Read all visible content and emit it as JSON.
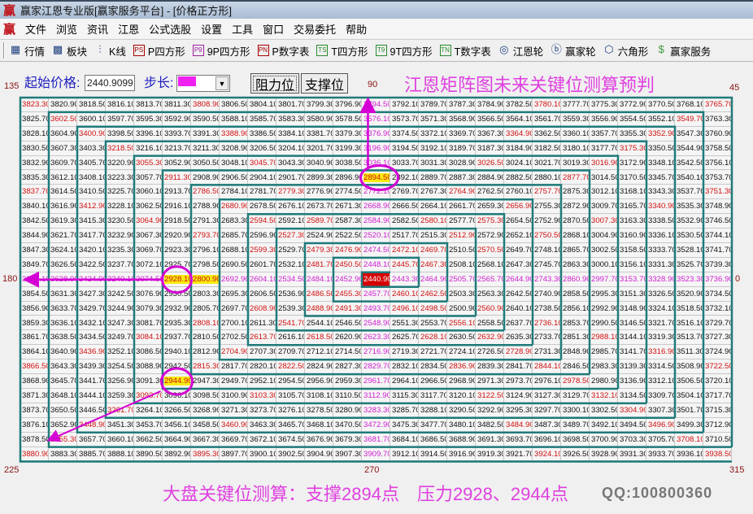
{
  "window": {
    "title": "赢家江恩专业版[赢家服务平台] - [价格正方形]",
    "logo": "赢"
  },
  "menu": [
    "文件",
    "浏览",
    "资讯",
    "江恩",
    "公式选股",
    "设置",
    "工具",
    "窗口",
    "交易委托",
    "帮助"
  ],
  "toolbar": [
    {
      "icon": "table-icon",
      "glyph": "▦",
      "label": "行情"
    },
    {
      "icon": "blocks-icon",
      "glyph": "▩",
      "label": "板块"
    },
    {
      "icon": "candlestick-icon",
      "glyph": "⫶",
      "label": "K线"
    },
    {
      "icon": "ps-icon",
      "glyph": "PS",
      "label": "P四方形"
    },
    {
      "icon": "p9-icon",
      "glyph": "P9",
      "label": "9P四方形"
    },
    {
      "icon": "pn-icon",
      "glyph": "PN",
      "label": "P数字表"
    },
    {
      "icon": "ts-icon",
      "glyph": "TS",
      "label": "T四方形"
    },
    {
      "icon": "t9-icon",
      "glyph": "T9",
      "label": "9T四方形"
    },
    {
      "icon": "tn-icon",
      "glyph": "TN",
      "label": "T数字表"
    },
    {
      "icon": "gann-wheel-icon",
      "glyph": "◎",
      "label": "江恩轮"
    },
    {
      "icon": "winner-wheel-icon",
      "glyph": "ⓑ",
      "label": "赢家轮"
    },
    {
      "icon": "hexagon-icon",
      "glyph": "⬡",
      "label": "六角形"
    },
    {
      "icon": "dollar-icon",
      "glyph": "$",
      "label": "赢家服务"
    }
  ],
  "controls": {
    "start_price_label": "起始价格:",
    "start_price_value": "2440.9099",
    "step_label": "步长:",
    "step_color": "#f020f0",
    "resistance_button": "阻力位",
    "support_button": "支撑位"
  },
  "headline": "江恩矩阵图未来关键位测算预判",
  "footline": "大盘关键位测算：支撑2894点　压力2928、2944点",
  "watermark": "QQ:100800360",
  "angles": {
    "a135": "135",
    "a90": "90",
    "a45": "45",
    "a180": "180",
    "a0": "0",
    "a225": "225",
    "a270": "270",
    "a315": "315"
  },
  "colors": {
    "red_text": "#d01010",
    "axis_text": "#d020d0",
    "center_bg": "#d40000",
    "highlight_bg": "#f8ec10",
    "spiral_line": "#1f7a7a",
    "annotation": "#d400d4"
  },
  "grid": {
    "color_codes_legend": {
      ".": "normal",
      "r": "red",
      "m": "magenta axis",
      "c": "center",
      "y": "highlighted key level"
    },
    "colors": [
      "r.....r.....m.....r.....r",
      ".r..........m..........r.",
      "..r....r....m....r....r..",
      "...r........m........r...",
      "....r...r...m...r...r....",
      ".....r......y......r.....",
      "r.....r..r..m..r..r.....r",
      "..r....r....m....r....r..",
      "....r...r.r.m.r.r...r....",
      "......r..r..m..r..r......",
      "........r.rrmrr.r........",
      "..........rrmrr..........",
      "mmmmmyymmmmmcmmmmmmmmmmmm",
      "..........rrmrr..........",
      "........r.rrmrr.r........",
      "......r..r..m..r..r......",
      "....r...r.r.m.r.r...r....",
      "..r....r....m....r....r..",
      "r.....r..r..m..r..r.....r",
      ".....y......m......r.....",
      "....r...r...m...r...r....",
      "...r........m........r...",
      "..r....r....m....r....r..",
      ".r..........m..........r.",
      "r.....r.....m.....r.....r"
    ],
    "rows": [
      [
        "3823.30",
        "3820.90",
        "3818.50",
        "3816.10",
        "3813.70",
        "3811.30",
        "3808.90",
        "3806.50",
        "3804.10",
        "3801.70",
        "3799.30",
        "3796.90",
        "3794.50",
        "3792.10",
        "3789.70",
        "3787.30",
        "3784.90",
        "3782.50",
        "3780.10",
        "3777.70",
        "3775.30",
        "3772.90",
        "3770.50",
        "3768.10",
        "3765.70"
      ],
      [
        "3825.70",
        "3602.50",
        "3600.10",
        "3597.70",
        "3595.30",
        "3592.90",
        "3590.50",
        "3588.10",
        "3585.70",
        "3583.30",
        "3580.90",
        "3578.50",
        "3576.10",
        "3573.70",
        "3571.30",
        "3568.90",
        "3566.50",
        "3564.10",
        "3561.70",
        "3559.30",
        "3556.90",
        "3554.50",
        "3552.10",
        "3549.70",
        "3763.30"
      ],
      [
        "3828.10",
        "3604.90",
        "3400.90",
        "3398.50",
        "3396.10",
        "3393.70",
        "3391.30",
        "3388.90",
        "3386.50",
        "3384.10",
        "3381.70",
        "3379.30",
        "3376.90",
        "3374.50",
        "3372.10",
        "3369.70",
        "3367.30",
        "3364.90",
        "3362.50",
        "3360.10",
        "3357.70",
        "3355.30",
        "3352.90",
        "3547.30",
        "3760.90"
      ],
      [
        "3830.50",
        "3607.30",
        "3403.30",
        "3218.50",
        "3216.10",
        "3213.70",
        "3211.30",
        "3208.90",
        "3206.50",
        "3204.10",
        "3201.70",
        "3199.30",
        "3196.90",
        "3194.50",
        "3192.10",
        "3189.70",
        "3187.30",
        "3184.90",
        "3182.50",
        "3180.10",
        "3177.70",
        "3175.30",
        "3350.50",
        "3544.90",
        "3758.50"
      ],
      [
        "3832.90",
        "3609.70",
        "3405.70",
        "3220.90",
        "3055.30",
        "3052.90",
        "3050.50",
        "3048.10",
        "3045.70",
        "3043.30",
        "3040.90",
        "3038.50",
        "3036.10",
        "3033.70",
        "3031.30",
        "3028.90",
        "3026.50",
        "3024.10",
        "3021.70",
        "3019.30",
        "3016.90",
        "3172.90",
        "3348.10",
        "3542.50",
        "3756.10"
      ],
      [
        "3835.30",
        "3612.10",
        "3408.10",
        "3223.30",
        "3057.70",
        "2911.30",
        "2908.90",
        "2906.50",
        "2904.10",
        "2901.70",
        "2899.30",
        "2896.90",
        "2894.50",
        "2892.10",
        "2889.70",
        "2887.30",
        "2884.90",
        "2882.50",
        "2880.10",
        "2877.70",
        "3014.50",
        "3170.50",
        "3345.70",
        "3540.10",
        "3753.70"
      ],
      [
        "3837.70",
        "3614.50",
        "3410.50",
        "3225.70",
        "3060.10",
        "2913.70",
        "2786.50",
        "2784.10",
        "2781.70",
        "2779.30",
        "2776.90",
        "2774.50",
        "2772.10",
        "2769.70",
        "2767.30",
        "2764.90",
        "2762.50",
        "2760.10",
        "2757.70",
        "2875.30",
        "3012.10",
        "3168.10",
        "3343.30",
        "3537.70",
        "3751.30"
      ],
      [
        "3840.10",
        "3616.90",
        "3412.90",
        "3228.10",
        "3062.50",
        "2916.10",
        "2788.90",
        "2680.90",
        "2678.50",
        "2676.10",
        "2673.70",
        "2671.30",
        "2668.90",
        "2666.50",
        "2664.10",
        "2661.70",
        "2659.30",
        "2656.90",
        "2755.30",
        "2872.90",
        "3009.70",
        "3165.70",
        "3340.90",
        "3535.30",
        "3748.90"
      ],
      [
        "3842.50",
        "3619.30",
        "3415.30",
        "3230.50",
        "3064.90",
        "2918.50",
        "2791.30",
        "2683.30",
        "2594.50",
        "2592.10",
        "2589.70",
        "2587.30",
        "2584.90",
        "2582.50",
        "2580.10",
        "2577.70",
        "2575.30",
        "2654.50",
        "2752.90",
        "2870.50",
        "3007.30",
        "3163.30",
        "3338.50",
        "3532.90",
        "3746.50"
      ],
      [
        "3844.90",
        "3621.70",
        "3417.70",
        "3232.90",
        "3067.30",
        "2920.90",
        "2793.70",
        "2685.70",
        "2596.90",
        "2527.30",
        "2524.90",
        "2522.50",
        "2520.10",
        "2517.70",
        "2515.30",
        "2512.90",
        "2572.90",
        "2652.10",
        "2750.50",
        "2868.10",
        "3004.90",
        "3160.90",
        "3336.10",
        "3530.50",
        "3744.10"
      ],
      [
        "3847.30",
        "3624.10",
        "3420.10",
        "3235.30",
        "3069.70",
        "2923.30",
        "2796.10",
        "2688.10",
        "2599.30",
        "2529.70",
        "2479.30",
        "2476.90",
        "2474.50",
        "2472.10",
        "2469.70",
        "2510.50",
        "2570.50",
        "2649.70",
        "2748.10",
        "2865.70",
        "3002.50",
        "3158.50",
        "3333.70",
        "3528.10",
        "3741.70"
      ],
      [
        "3849.70",
        "3626.50",
        "3422.50",
        "3237.70",
        "3072.10",
        "2925.70",
        "2798.50",
        "2690.50",
        "2601.70",
        "2532.10",
        "2481.70",
        "2450.50",
        "2448.10",
        "2445.70",
        "2467.30",
        "2508.10",
        "2568.10",
        "2647.30",
        "2745.70",
        "2863.30",
        "3000.10",
        "3156.10",
        "3331.30",
        "3525.70",
        "3739.30"
      ],
      [
        "3852.10",
        "3628.90",
        "3424.90",
        "3240.10",
        "3074.50",
        "2928.10",
        "2800.90",
        "2692.90",
        "2604.10",
        "2534.50",
        "2484.10",
        "2452.90",
        "2440.90",
        "2443.30",
        "2464.90",
        "2505.70",
        "2565.70",
        "2644.90",
        "2743.30",
        "2860.90",
        "2997.70",
        "3153.70",
        "3328.90",
        "3523.30",
        "3736.90"
      ],
      [
        "3854.50",
        "3631.30",
        "3427.30",
        "3242.50",
        "3076.90",
        "2930.50",
        "2803.30",
        "2695.30",
        "2606.50",
        "2536.90",
        "2486.50",
        "2455.30",
        "2457.70",
        "2460.10",
        "2462.50",
        "2503.30",
        "2563.30",
        "2642.50",
        "2740.90",
        "2858.50",
        "2995.30",
        "3151.30",
        "3326.50",
        "3520.90",
        "3734.50"
      ],
      [
        "3856.90",
        "3633.70",
        "3429.70",
        "3244.90",
        "3079.30",
        "2932.90",
        "2805.70",
        "2697.70",
        "2608.90",
        "2539.30",
        "2488.90",
        "2491.30",
        "2493.70",
        "2496.10",
        "2498.50",
        "2500.90",
        "2560.90",
        "2640.10",
        "2738.50",
        "2856.10",
        "2992.90",
        "3148.90",
        "3324.10",
        "3518.50",
        "3732.10"
      ],
      [
        "3859.30",
        "3636.10",
        "3432.10",
        "3247.30",
        "3081.70",
        "2935.30",
        "2808.10",
        "2700.10",
        "2611.30",
        "2541.70",
        "2544.10",
        "2546.50",
        "2548.90",
        "2551.30",
        "2553.70",
        "2556.10",
        "2558.50",
        "2637.70",
        "2736.10",
        "2853.70",
        "2990.50",
        "3146.50",
        "3321.70",
        "3516.10",
        "3729.70"
      ],
      [
        "3861.70",
        "3638.50",
        "3434.50",
        "3249.70",
        "3084.10",
        "2937.70",
        "2810.50",
        "2702.50",
        "2613.70",
        "2616.10",
        "2618.50",
        "2620.90",
        "2623.30",
        "2625.70",
        "2628.10",
        "2630.50",
        "2632.90",
        "2635.30",
        "2733.70",
        "2851.30",
        "2988.10",
        "3144.10",
        "3319.30",
        "3513.70",
        "3727.30"
      ],
      [
        "3864.10",
        "3640.90",
        "3436.90",
        "3252.10",
        "3086.50",
        "2940.10",
        "2812.90",
        "2704.90",
        "2707.30",
        "2709.70",
        "2712.10",
        "2714.50",
        "2716.90",
        "2719.30",
        "2721.70",
        "2724.10",
        "2726.50",
        "2728.90",
        "2731.30",
        "2848.90",
        "2985.70",
        "3141.70",
        "3316.90",
        "3511.30",
        "3724.90"
      ],
      [
        "3866.50",
        "3643.30",
        "3439.30",
        "3254.50",
        "3088.90",
        "2942.50",
        "2815.30",
        "2817.70",
        "2820.10",
        "2822.50",
        "2824.90",
        "2827.30",
        "2829.70",
        "2832.10",
        "2834.50",
        "2836.90",
        "2839.30",
        "2841.70",
        "2844.10",
        "2846.50",
        "2983.30",
        "3139.30",
        "3314.50",
        "3508.90",
        "3722.50"
      ],
      [
        "3868.90",
        "3645.70",
        "3441.70",
        "3256.90",
        "3091.30",
        "2944.90",
        "2947.30",
        "2949.70",
        "2952.10",
        "2954.50",
        "2956.90",
        "2959.30",
        "2961.70",
        "2964.10",
        "2966.50",
        "2968.90",
        "2971.30",
        "2973.70",
        "2976.10",
        "2978.50",
        "2980.90",
        "3136.90",
        "3312.10",
        "3506.50",
        "3720.10"
      ],
      [
        "3871.30",
        "3648.10",
        "3444.10",
        "3259.30",
        "3093.70",
        "3096.10",
        "3098.50",
        "3100.90",
        "3103.30",
        "3105.70",
        "3108.10",
        "3110.50",
        "3112.90",
        "3115.30",
        "3117.70",
        "3120.10",
        "3122.50",
        "3124.90",
        "3127.30",
        "3129.70",
        "3132.10",
        "3134.50",
        "3309.70",
        "3504.10",
        "3717.70"
      ],
      [
        "3873.70",
        "3650.50",
        "3446.50",
        "3261.70",
        "3264.10",
        "3266.50",
        "3268.90",
        "3271.30",
        "3273.70",
        "3276.10",
        "3278.50",
        "3280.90",
        "3283.30",
        "3285.70",
        "3288.10",
        "3290.50",
        "3292.90",
        "3295.30",
        "3297.70",
        "3300.10",
        "3302.50",
        "3304.90",
        "3307.30",
        "3501.70",
        "3715.30"
      ],
      [
        "3876.10",
        "3652.90",
        "3448.90",
        "3451.30",
        "3453.70",
        "3456.10",
        "3458.50",
        "3460.90",
        "3463.30",
        "3465.70",
        "3468.10",
        "3470.50",
        "3472.90",
        "3475.30",
        "3477.70",
        "3480.10",
        "3482.50",
        "3484.90",
        "3487.30",
        "3489.70",
        "3492.10",
        "3494.50",
        "3496.90",
        "3499.30",
        "3712.90"
      ],
      [
        "3878.50",
        "3655.30",
        "3657.70",
        "3660.10",
        "3662.50",
        "3664.90",
        "3667.30",
        "3669.70",
        "3672.10",
        "3674.50",
        "3676.90",
        "3679.30",
        "3681.70",
        "3684.10",
        "3686.50",
        "3688.90",
        "3691.30",
        "3693.70",
        "3696.10",
        "3698.50",
        "3700.90",
        "3703.30",
        "3705.70",
        "3708.10",
        "3710.50"
      ],
      [
        "3880.90",
        "3883.30",
        "3885.70",
        "3888.10",
        "3890.50",
        "3892.90",
        "3895.30",
        "3897.70",
        "3900.10",
        "3902.50",
        "3904.90",
        "3907.30",
        "3909.70",
        "3912.10",
        "3914.50",
        "3916.90",
        "3919.30",
        "3921.70",
        "3924.10",
        "3926.50",
        "3928.90",
        "3931.30",
        "3933.70",
        "3936.10",
        "3938.50"
      ]
    ]
  }
}
